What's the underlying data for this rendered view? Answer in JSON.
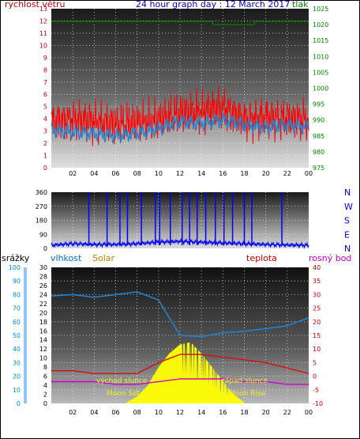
{
  "colors": {
    "wind_speed": "#ff0000",
    "gust": "#ff0000",
    "pressure": "#008000",
    "wind_dir": "#0000ff",
    "humidity": "#1e82d2",
    "solar": "#ffff00",
    "temperature": "#d01010",
    "dew_point": "#d000d0",
    "title": "#0000c0",
    "hum_label": "#0070c0",
    "solar_label": "#c08000",
    "rain_label": "#0090d0",
    "axis_left_top": "#c00000",
    "axis_right_top": "#008000",
    "axis_right_bottom": "#c00000",
    "label_moon": "#f0f020"
  },
  "chart_data": [
    {
      "type": "line",
      "title": "24 hour graph day : 12 March 2017",
      "ylabel": "rychlost větru",
      "ylabel_right": "tlak",
      "ylim": [
        0,
        13
      ],
      "ylim_right": [
        975,
        1025
      ],
      "x_ticks": [
        "02",
        "04",
        "06",
        "08",
        "10",
        "12",
        "14",
        "16",
        "18",
        "20",
        "22",
        "00"
      ],
      "y_ticks": [
        "0",
        "1",
        "2",
        "3",
        "4",
        "5",
        "6",
        "7",
        "8",
        "9",
        "10",
        "11",
        "12",
        "13"
      ],
      "y_ticks_right": [
        "975",
        "980",
        "985",
        "990",
        "995",
        "1000",
        "1005",
        "1010",
        "1015",
        "1020",
        "1025"
      ],
      "grid": true,
      "x_hours": [
        0,
        2,
        4,
        6,
        8,
        10,
        12,
        14,
        16,
        18,
        20,
        22,
        24
      ],
      "series": [
        {
          "key": "gust",
          "color_key": "wind_speed",
          "values": [
            3.8,
            4.0,
            3.8,
            3.5,
            3.6,
            3.8,
            4.4,
            4.6,
            5.0,
            4.0,
            4.2,
            4.0,
            3.9
          ]
        },
        {
          "key": "avg",
          "color_key": "humidity",
          "values": [
            3.1,
            2.9,
            2.8,
            2.6,
            2.8,
            3.2,
            3.8,
            3.6,
            3.9,
            3.5,
            3.3,
            3.5,
            3.3
          ]
        },
        {
          "key": "pressure",
          "color_key": "pressure",
          "axis": "right",
          "values": [
            1021,
            1021,
            1021,
            1021,
            1021,
            1021,
            1021,
            1021,
            1020,
            1020,
            1021,
            1021,
            1021
          ]
        }
      ]
    },
    {
      "type": "line",
      "ylim": [
        0,
        360
      ],
      "y_ticks": [
        "0",
        "90",
        "180",
        "270",
        "360"
      ],
      "y_ticks_right": [
        "N",
        "E",
        "S",
        "W",
        "N"
      ],
      "grid": true,
      "x_hours": [
        0,
        2,
        4,
        6,
        8,
        10,
        12,
        14,
        16,
        18,
        20,
        22,
        24
      ],
      "direction_values": [
        20,
        30,
        25,
        25,
        30,
        40,
        45,
        40,
        35,
        30,
        25,
        22,
        20
      ],
      "spikes_hours": [
        3.5,
        5.2,
        6.4,
        7.1,
        8.4,
        9.7,
        10.1,
        11.1,
        12.2,
        12.9,
        13.6,
        14.4,
        15.3,
        16.1,
        16.9,
        18.0,
        18.7,
        21.5
      ]
    },
    {
      "type": "line",
      "left_labels": {
        "rain": "srážky",
        "humidity": "vlhkost",
        "solar": "Solar"
      },
      "right_labels": {
        "temperature": "teplota",
        "dew_point": "rosný bod"
      },
      "ylim_rain": [
        0,
        100
      ],
      "ylim_hum": [
        0,
        30
      ],
      "ylim_temp": [
        -10,
        40
      ],
      "y_ticks_rain": [
        "0",
        "10",
        "20",
        "30",
        "40",
        "50",
        "60",
        "70",
        "80",
        "90",
        "100"
      ],
      "y_ticks_hum": [
        "0",
        "2",
        "4",
        "6",
        "8",
        "10",
        "12",
        "14",
        "16",
        "18",
        "20",
        "22",
        "24",
        "26",
        "28",
        "30"
      ],
      "y_ticks_temp": [
        "-10",
        "-5",
        "0",
        "5",
        "10",
        "15",
        "20",
        "25",
        "30",
        "35",
        "40"
      ],
      "x_ticks": [
        "02",
        "04",
        "06",
        "08",
        "10",
        "12",
        "14",
        "16",
        "18",
        "20",
        "22",
        "00"
      ],
      "annotations": {
        "sunrise": "východ slunce",
        "sunset": "západ slunce",
        "moonset": "Moon Set",
        "moonrise": "Moon Rise"
      },
      "x_hours": [
        0,
        2,
        4,
        6,
        8,
        10,
        12,
        14,
        16,
        18,
        20,
        22,
        24
      ],
      "humidity": [
        79,
        80,
        78,
        80,
        82,
        76,
        50,
        49,
        52,
        53,
        55,
        57,
        63
      ],
      "temperature": [
        2,
        2,
        1,
        1,
        1,
        5,
        8,
        8,
        7,
        6,
        5,
        3,
        1
      ],
      "dew_point": [
        -2,
        -2,
        -2,
        -3,
        -3,
        -2,
        -1,
        -1,
        -1,
        -2,
        -2,
        -3,
        -3
      ],
      "solar_hours": [
        7.0,
        8.0,
        9.0,
        10.0,
        11.0,
        12.0,
        13.0,
        14.0,
        15.0,
        16.0,
        17.0,
        18.0
      ],
      "solar_values": [
        0.2,
        1.5,
        4,
        8,
        11,
        13,
        13.5,
        11,
        8,
        5,
        2,
        0.2
      ]
    }
  ]
}
